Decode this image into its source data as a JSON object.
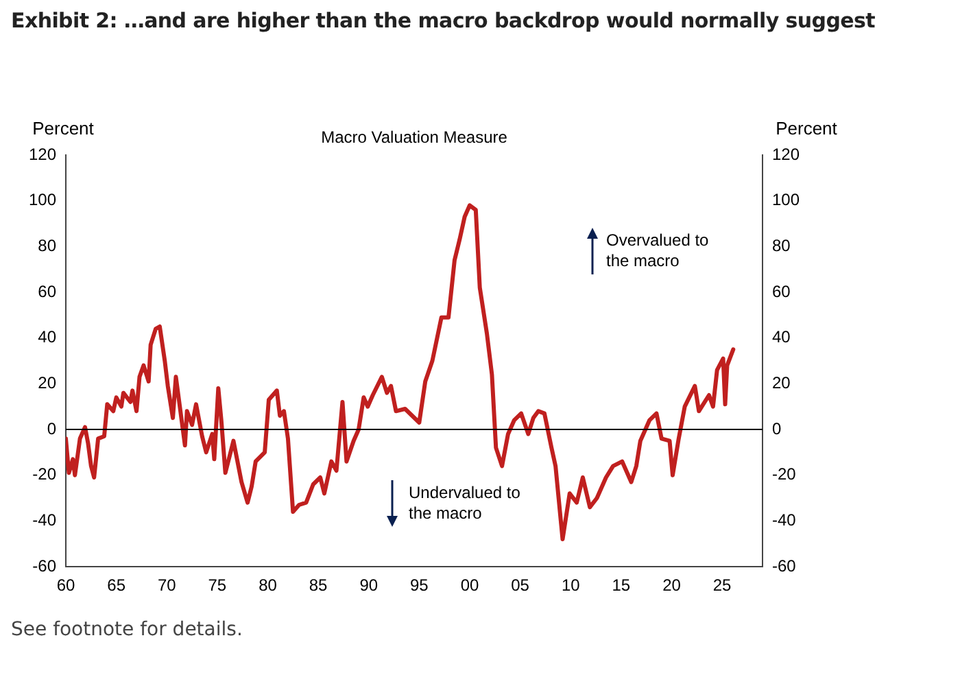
{
  "chart_data": {
    "type": "line",
    "title": "Exhibit 2: …and are higher than the macro backdrop would normally suggest",
    "subtitle": "Macro Valuation Measure",
    "ylabel": "Percent",
    "y2label": "Percent",
    "annotations": [
      "Overvalued to the macro",
      "Undervalued to the macro",
      "See footnote for details."
    ],
    "xlim": [
      1960,
      2029
    ],
    "xticks": [
      {
        "value": 1960,
        "label": "60"
      },
      {
        "value": 1965,
        "label": "65"
      },
      {
        "value": 1970,
        "label": "70"
      },
      {
        "value": 1975,
        "label": "75"
      },
      {
        "value": 1980,
        "label": "80"
      },
      {
        "value": 1985,
        "label": "85"
      },
      {
        "value": 1990,
        "label": "90"
      },
      {
        "value": 1995,
        "label": "95"
      },
      {
        "value": 2000,
        "label": "00"
      },
      {
        "value": 2005,
        "label": "05"
      },
      {
        "value": 2010,
        "label": "10"
      },
      {
        "value": 2015,
        "label": "15"
      },
      {
        "value": 2020,
        "label": "20"
      },
      {
        "value": 2025,
        "label": "25"
      }
    ],
    "ylim": [
      -60,
      120
    ],
    "yticks": [
      -60,
      -40,
      -20,
      0,
      20,
      40,
      60,
      80,
      100,
      120
    ],
    "y2lim": [
      -60,
      120
    ],
    "y2ticks": [
      -60,
      -40,
      -20,
      0,
      20,
      40,
      60,
      80,
      100,
      120
    ],
    "grid": false,
    "legend": false,
    "marker": "none",
    "line_style": "solid",
    "ref_lines": [
      {
        "axis": "y",
        "value": 0,
        "color": "#000000"
      }
    ],
    "series": [
      {
        "color": "#c0201f",
        "x": [
          1960,
          1960.3,
          1960.7,
          1960.9,
          1961.4,
          1961.9,
          1962.2,
          1962.5,
          1962.8,
          1963.2,
          1963.8,
          1964.1,
          1964.7,
          1965,
          1965.5,
          1965.7,
          1966.4,
          1966.6,
          1967,
          1967.3,
          1967.7,
          1968.2,
          1968.4,
          1968.9,
          1969.3,
          1969.8,
          1970.1,
          1970.6,
          1970.9,
          1971.8,
          1972,
          1972.5,
          1972.9,
          1973.5,
          1973.9,
          1974.5,
          1974.7,
          1975.1,
          1975.4,
          1975.8,
          1976.6,
          1977.4,
          1978,
          1978.4,
          1978.8,
          1979.7,
          1980.1,
          1980.9,
          1981.2,
          1981.6,
          1982,
          1982.5,
          1983.1,
          1983.8,
          1984.5,
          1985.2,
          1985.6,
          1986.3,
          1986.8,
          1987.4,
          1987.8,
          1988.5,
          1989,
          1989.5,
          1989.9,
          1990.4,
          1991.3,
          1991.8,
          1992.2,
          1992.7,
          1993.6,
          1995,
          1995.6,
          1996.3,
          1997.2,
          1997.9,
          1998.5,
          1999,
          1999.5,
          2000,
          2000.6,
          2001,
          2001.7,
          2002.2,
          2002.6,
          2003.2,
          2003.8,
          2004.4,
          2005.1,
          2005.8,
          2006.3,
          2006.8,
          2007.4,
          2008.1,
          2008.5,
          2009.2,
          2009.9,
          2010.6,
          2011.2,
          2011.9,
          2012.6,
          2013.5,
          2014.2,
          2015.1,
          2016,
          2016.5,
          2016.9,
          2017.8,
          2018.5,
          2019,
          2019.8,
          2020.1,
          2020.7,
          2021.3,
          2022.3,
          2022.7,
          2023.7,
          2024.1,
          2024.5,
          2025.1,
          2025.3,
          2025.5,
          2026.1
        ],
        "values": [
          -4,
          -19,
          -13,
          -20,
          -4,
          1,
          -6,
          -16,
          -21,
          -4,
          -3,
          11,
          8,
          14,
          10,
          16,
          12,
          17,
          8,
          23,
          28,
          21,
          37,
          44,
          45,
          30,
          19,
          5,
          23,
          -7,
          8,
          2,
          11,
          -3,
          -10,
          -2,
          -13,
          18,
          4,
          -19,
          -5,
          -23,
          -32,
          -25,
          -14,
          -10,
          13,
          17,
          6,
          8,
          -4,
          -36,
          -33,
          -32,
          -24,
          -21,
          -28,
          -14,
          -18,
          12,
          -14,
          -5,
          0,
          14,
          10,
          15,
          23,
          16,
          19,
          8,
          9,
          3,
          21,
          30,
          49,
          49,
          74,
          83,
          93,
          98,
          96,
          62,
          42,
          24,
          -8,
          -16,
          -2,
          4,
          7,
          -2,
          5,
          8,
          7,
          -8,
          -16,
          -48,
          -28,
          -32,
          -21,
          -34,
          -30,
          -21,
          -16,
          -14,
          -23,
          -16,
          -5,
          4,
          7,
          -4,
          -5,
          -20,
          -4,
          10,
          19,
          8,
          15,
          10,
          26,
          31,
          11,
          28,
          35
        ]
      }
    ]
  }
}
